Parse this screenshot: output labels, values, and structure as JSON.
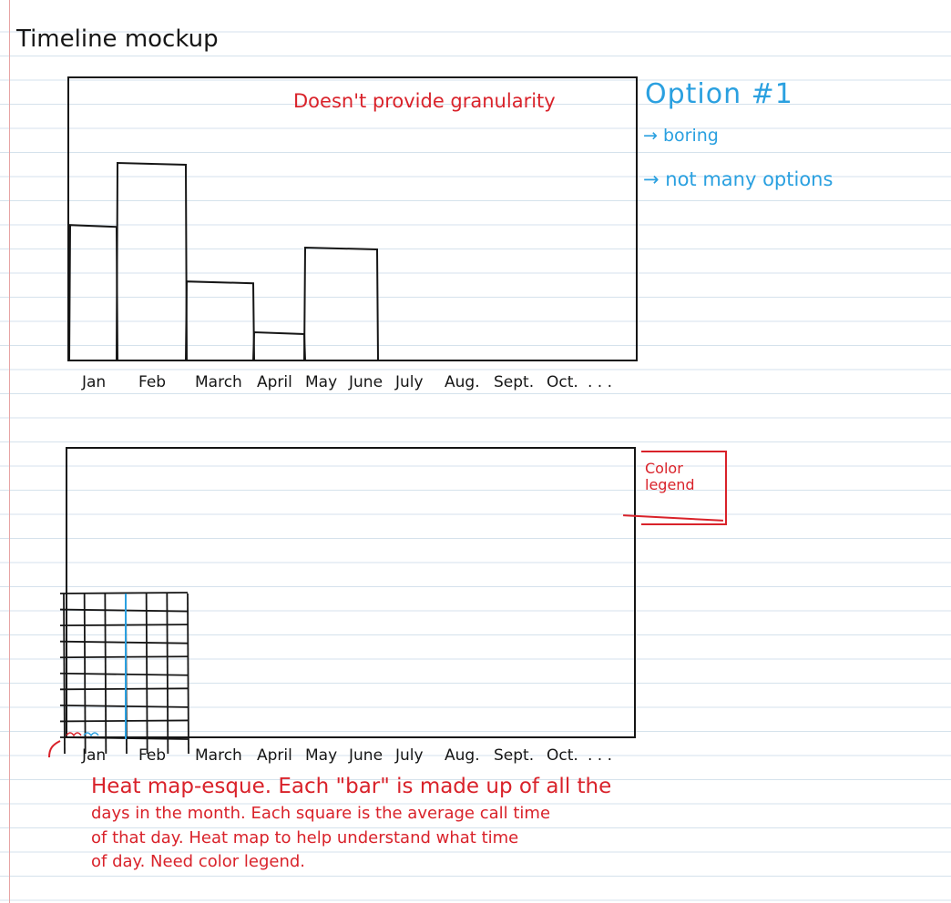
{
  "page": {
    "title": "Timeline mockup"
  },
  "option1": {
    "note": "Doesn't provide granularity",
    "heading": "Option #1",
    "bullets": [
      "→ boring",
      "→ not many options"
    ],
    "months": [
      "Jan",
      "Feb",
      "March",
      "April",
      "May",
      "June",
      "July",
      "Aug.",
      "Sept.",
      "Oct.",
      ". . ."
    ]
  },
  "option2": {
    "legend_label": "Color legend",
    "months": [
      "Jan",
      "Feb",
      "March",
      "April",
      "May",
      "June",
      "July",
      "Aug.",
      "Sept.",
      "Oct.",
      ". . ."
    ],
    "note_lines": [
      "Heat map-esque. Each \"bar\" is made up of all the",
      "days in the month. Each square is the average call time",
      "of that day. Heat map to help understand what time",
      "of day. Need color legend."
    ]
  },
  "colors": {
    "ink": "#161616",
    "red_ink": "#d9222a",
    "blue_ink": "#2aa0e0",
    "ruled_line": "#d5e2ec"
  },
  "chart_data": [
    {
      "type": "bar",
      "sketch": true,
      "categories": [
        "Jan",
        "Feb",
        "March",
        "April",
        "May"
      ],
      "values": [
        48,
        70,
        28,
        10,
        40
      ],
      "ylim": [
        0,
        100
      ],
      "grid": false
    },
    {
      "type": "heatmap",
      "sketch": true,
      "categories": [
        "Jan",
        "Feb"
      ],
      "rows": 9,
      "columns_per_month": 3,
      "grid": true
    }
  ]
}
